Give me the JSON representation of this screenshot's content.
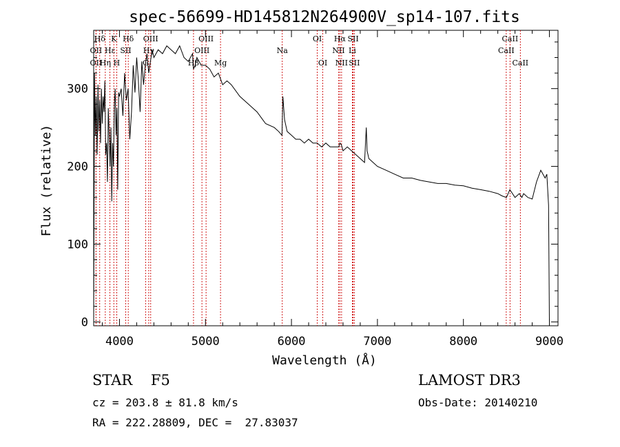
{
  "chart_data": {
    "type": "line",
    "title": "spec-56699-HD145812N264900V_sp14-107.fits",
    "xlabel": "Wavelength (Å)",
    "ylabel": "Flux (relative)",
    "xlim": [
      3700,
      9100
    ],
    "ylim": [
      -5,
      375
    ],
    "x_ticks": [
      4000,
      5000,
      6000,
      7000,
      8000,
      9000
    ],
    "y_ticks": [
      0,
      100,
      200,
      300
    ],
    "grid": false,
    "legend": "none",
    "line_color": "#000000",
    "marker_color": "#cc0000",
    "series": [
      {
        "x": [
          3700,
          3710,
          3720,
          3730,
          3740,
          3750,
          3760,
          3770,
          3780,
          3790,
          3800,
          3810,
          3820,
          3830,
          3840,
          3850,
          3860,
          3870,
          3880,
          3890,
          3900,
          3910,
          3920,
          3930,
          3940,
          3950,
          3960,
          3970,
          3980,
          3990,
          4000,
          4020,
          4040,
          4060,
          4080,
          4100,
          4120,
          4140,
          4160,
          4180,
          4200,
          4220,
          4240,
          4260,
          4280,
          4300,
          4320,
          4340,
          4360,
          4380,
          4400,
          4450,
          4500,
          4550,
          4600,
          4650,
          4700,
          4750,
          4800,
          4850,
          4860,
          4880,
          4900,
          4950,
          5000,
          5050,
          5100,
          5150,
          5200,
          5250,
          5300,
          5400,
          5500,
          5600,
          5700,
          5800,
          5850,
          5890,
          5900,
          5920,
          5950,
          6000,
          6050,
          6100,
          6150,
          6200,
          6250,
          6300,
          6350,
          6400,
          6450,
          6500,
          6550,
          6563,
          6580,
          6600,
          6650,
          6700,
          6750,
          6800,
          6850,
          6870,
          6880,
          6890,
          6900,
          6950,
          7000,
          7100,
          7200,
          7300,
          7400,
          7500,
          7600,
          7700,
          7800,
          7900,
          8000,
          8100,
          8200,
          8300,
          8400,
          8450,
          8500,
          8540,
          8600,
          8650,
          8680,
          8700,
          8750,
          8800,
          8850,
          8900,
          8950,
          8970,
          8990,
          9000
        ],
        "y": [
          0,
          320,
          240,
          290,
          215,
          305,
          245,
          285,
          230,
          300,
          255,
          290,
          270,
          310,
          215,
          230,
          180,
          275,
          240,
          200,
          250,
          155,
          230,
          200,
          280,
          300,
          240,
          275,
          170,
          295,
          290,
          300,
          265,
          320,
          285,
          300,
          235,
          270,
          330,
          295,
          340,
          310,
          270,
          335,
          305,
          330,
          345,
          320,
          335,
          350,
          340,
          350,
          345,
          355,
          350,
          345,
          355,
          340,
          335,
          345,
          325,
          330,
          340,
          330,
          330,
          325,
          315,
          320,
          305,
          310,
          305,
          290,
          280,
          270,
          255,
          250,
          245,
          240,
          290,
          260,
          245,
          240,
          235,
          235,
          230,
          235,
          230,
          230,
          225,
          230,
          225,
          225,
          225,
          230,
          228,
          220,
          225,
          220,
          215,
          210,
          205,
          250,
          220,
          215,
          210,
          205,
          200,
          195,
          190,
          185,
          185,
          182,
          180,
          178,
          178,
          176,
          175,
          172,
          170,
          168,
          165,
          162,
          160,
          170,
          160,
          165,
          160,
          165,
          160,
          158,
          180,
          195,
          185,
          190,
          150,
          0
        ]
      }
    ],
    "lines": [
      {
        "label": "Hδ",
        "x": 3770,
        "row": 0
      },
      {
        "label": "OII",
        "x": 3727,
        "row": 1
      },
      {
        "label": "OII",
        "x": 3727,
        "row": 2
      },
      {
        "label": "K",
        "x": 3934,
        "row": 0
      },
      {
        "label": "Hδ",
        "x": 4102,
        "row": 0
      },
      {
        "label": "Hε",
        "x": 3889,
        "row": 1
      },
      {
        "label": "Hη",
        "x": 3835,
        "row": 2
      },
      {
        "label": "SII",
        "x": 4072,
        "row": 1
      },
      {
        "label": "H",
        "x": 3968,
        "row": 2
      },
      {
        "label": "OIII",
        "x": 4363,
        "row": 0
      },
      {
        "label": "Hγ",
        "x": 4340,
        "row": 1
      },
      {
        "label": "G",
        "x": 4304,
        "row": 2
      },
      {
        "label": "OIII",
        "x": 5007,
        "row": 0
      },
      {
        "label": "OIII",
        "x": 4959,
        "row": 1
      },
      {
        "label": "Hβ",
        "x": 4861,
        "row": 2
      },
      {
        "label": "Mg",
        "x": 5175,
        "row": 2
      },
      {
        "label": "Na",
        "x": 5893,
        "row": 1
      },
      {
        "label": "OI",
        "x": 6300,
        "row": 0
      },
      {
        "label": "OI",
        "x": 6364,
        "row": 2
      },
      {
        "label": "Hα",
        "x": 6563,
        "row": 0
      },
      {
        "label": "SII",
        "x": 6717,
        "row": 0
      },
      {
        "label": "NII",
        "x": 6548,
        "row": 1
      },
      {
        "label": "Li",
        "x": 6708,
        "row": 1
      },
      {
        "label": "NII",
        "x": 6583,
        "row": 2
      },
      {
        "label": "SII",
        "x": 6731,
        "row": 2
      },
      {
        "label": "CaII",
        "x": 8542,
        "row": 0
      },
      {
        "label": "CaII",
        "x": 8498,
        "row": 1
      },
      {
        "label": "CaII",
        "x": 8662,
        "row": 2
      }
    ]
  },
  "info": {
    "star": "STAR    F5",
    "survey": "LAMOST DR3",
    "cz": "cz = 203.8 ± 81.8 km/s",
    "obs_date": "Obs-Date: 20140210",
    "coords": "RA = 222.28809, DEC =  27.83037"
  }
}
